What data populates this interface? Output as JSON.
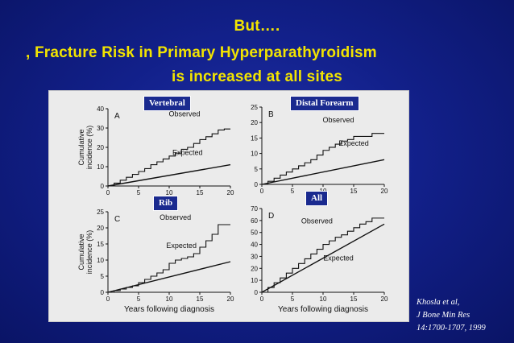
{
  "slide": {
    "title_line1": "But….",
    "title_line2": ", Fracture Risk in Primary Hyperparathyroidism",
    "title_line3": "is increased at all sites"
  },
  "labels": {
    "vertebral": "Vertebral",
    "distal_forearm": "Distal Forearm",
    "rib": "Rib",
    "all": "All"
  },
  "citation": {
    "line1": "Khosla et al,",
    "line2": "J Bone Min Res",
    "line3": "14:1700-1707, 1999"
  },
  "colors": {
    "title": "#f2e400",
    "background": "#12208a",
    "label_box": "#1a2a8f"
  },
  "chart_data": [
    {
      "type": "line",
      "panel_letter": "A",
      "xlabel": "",
      "ylabel": "Cumulative incidence (%)",
      "xlim": [
        0,
        20
      ],
      "ylim": [
        0,
        40
      ],
      "xticks": [
        0,
        5,
        10,
        15,
        20
      ],
      "yticks": [
        0,
        10,
        20,
        30,
        40
      ],
      "series": [
        {
          "name": "Observed",
          "style": "step",
          "x": [
            0,
            1,
            2,
            3,
            4,
            5,
            6,
            7,
            8,
            9,
            10,
            11,
            12,
            13,
            14,
            15,
            16,
            17,
            18,
            19,
            20
          ],
          "y": [
            0,
            1.5,
            3,
            4.5,
            6,
            7.5,
            9,
            11,
            12.5,
            14,
            15.5,
            17,
            19,
            20,
            22,
            24,
            25.5,
            27,
            29,
            29.5,
            29.5
          ]
        },
        {
          "name": "Expected",
          "style": "line",
          "x": [
            0,
            20
          ],
          "y": [
            0,
            11
          ]
        }
      ]
    },
    {
      "type": "line",
      "panel_letter": "B",
      "xlabel": "",
      "ylabel": "",
      "xlim": [
        0,
        20
      ],
      "ylim": [
        0,
        25
      ],
      "xticks": [
        0,
        5,
        10,
        15,
        20
      ],
      "yticks": [
        0,
        5,
        10,
        15,
        20,
        25
      ],
      "series": [
        {
          "name": "Observed",
          "style": "step",
          "x": [
            0,
            1,
            2,
            3,
            4,
            5,
            6,
            7,
            8,
            9,
            10,
            11,
            12,
            13,
            14,
            15,
            16,
            17,
            18,
            19,
            20
          ],
          "y": [
            0,
            1,
            2,
            3,
            4,
            5,
            6,
            7,
            8,
            9.5,
            11,
            12,
            13,
            14,
            14.5,
            15.5,
            15.5,
            15.5,
            16.5,
            16.5,
            16.5
          ]
        },
        {
          "name": "Expected",
          "style": "line",
          "x": [
            0,
            20
          ],
          "y": [
            0,
            8
          ]
        }
      ]
    },
    {
      "type": "line",
      "panel_letter": "C",
      "xlabel": "Years following diagnosis",
      "ylabel": "Cumulative incidence (%)",
      "xlim": [
        0,
        20
      ],
      "ylim": [
        0,
        25
      ],
      "xticks": [
        0,
        5,
        10,
        15,
        20
      ],
      "yticks": [
        0,
        5,
        10,
        15,
        20,
        25
      ],
      "series": [
        {
          "name": "Observed",
          "style": "step",
          "x": [
            0,
            1,
            2,
            3,
            4,
            5,
            6,
            7,
            8,
            9,
            10,
            11,
            12,
            13,
            14,
            15,
            16,
            17,
            18,
            19,
            20
          ],
          "y": [
            0,
            0.5,
            1,
            1.5,
            2,
            3,
            4,
            5,
            6,
            7,
            9,
            10,
            10.5,
            11,
            12,
            14,
            16,
            18,
            21,
            21,
            21
          ]
        },
        {
          "name": "Expected",
          "style": "line",
          "x": [
            0,
            20
          ],
          "y": [
            0,
            9.5
          ]
        }
      ]
    },
    {
      "type": "line",
      "panel_letter": "D",
      "xlabel": "Years following diagnosis",
      "ylabel": "",
      "xlim": [
        0,
        20
      ],
      "ylim": [
        0,
        70
      ],
      "xticks": [
        0,
        5,
        10,
        15,
        20
      ],
      "yticks": [
        0,
        10,
        20,
        30,
        40,
        50,
        60,
        70
      ],
      "series": [
        {
          "name": "Observed",
          "style": "step",
          "x": [
            0,
            1,
            2,
            3,
            4,
            5,
            6,
            7,
            8,
            9,
            10,
            11,
            12,
            13,
            14,
            15,
            16,
            17,
            18,
            19,
            20
          ],
          "y": [
            0,
            4,
            8,
            12,
            16,
            20,
            24,
            28,
            32,
            36,
            40,
            43,
            46,
            48,
            51,
            54,
            57,
            59,
            62,
            62,
            62
          ]
        },
        {
          "name": "Expected",
          "style": "line",
          "x": [
            0,
            20
          ],
          "y": [
            0,
            57
          ]
        }
      ]
    }
  ]
}
